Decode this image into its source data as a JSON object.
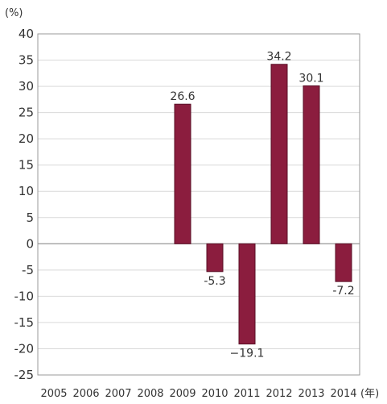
{
  "chart_data": {
    "type": "bar",
    "title": "",
    "y_unit_label": "(%)",
    "x_unit_label": "(年)",
    "categories": [
      "2005",
      "2006",
      "2007",
      "2008",
      "2009",
      "2010",
      "2011",
      "2012",
      "2013",
      "2014"
    ],
    "values": [
      0,
      0,
      0,
      0,
      26.6,
      -5.3,
      -19.1,
      34.2,
      30.1,
      -7.2
    ],
    "data_labels": [
      "",
      "",
      "",
      "",
      "26.6",
      "-5.3",
      "−19.1",
      "34.2",
      "30.1",
      "-7.2"
    ],
    "ylim": [
      -25,
      40
    ],
    "yticks": [
      "40",
      "35",
      "30",
      "25",
      "20",
      "15",
      "10",
      "5",
      "0",
      "-5",
      "-10",
      "-15",
      "-20",
      "-25"
    ],
    "grid": true,
    "legend": "none",
    "colors": {
      "bar": "#8b1d3e",
      "bar_edge": "#5a0f26",
      "grid": "#d9d9d9",
      "axis": "#999999"
    }
  }
}
